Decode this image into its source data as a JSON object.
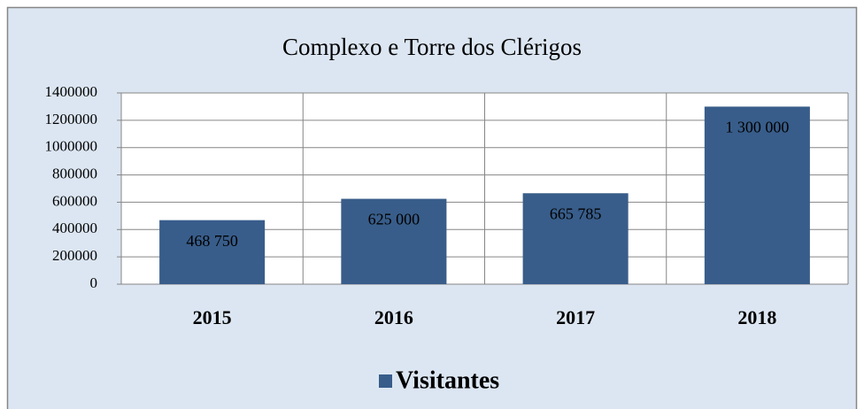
{
  "chart_data": {
    "type": "bar",
    "title": "Complexo e Torre dos Clérigos",
    "categories": [
      "2015",
      "2016",
      "2017",
      "2018"
    ],
    "series": [
      {
        "name": "Visitantes",
        "color": "#385d8a",
        "values": [
          468750,
          625000,
          665785,
          1300000
        ],
        "value_labels": [
          "468 750",
          "625 000",
          "665 785",
          "1 300 000"
        ]
      }
    ],
    "ylim": [
      0,
      1400000
    ],
    "yticks": [
      0,
      200000,
      400000,
      600000,
      800000,
      1000000,
      1200000,
      1400000
    ],
    "grid": true,
    "legend": "bottom"
  }
}
